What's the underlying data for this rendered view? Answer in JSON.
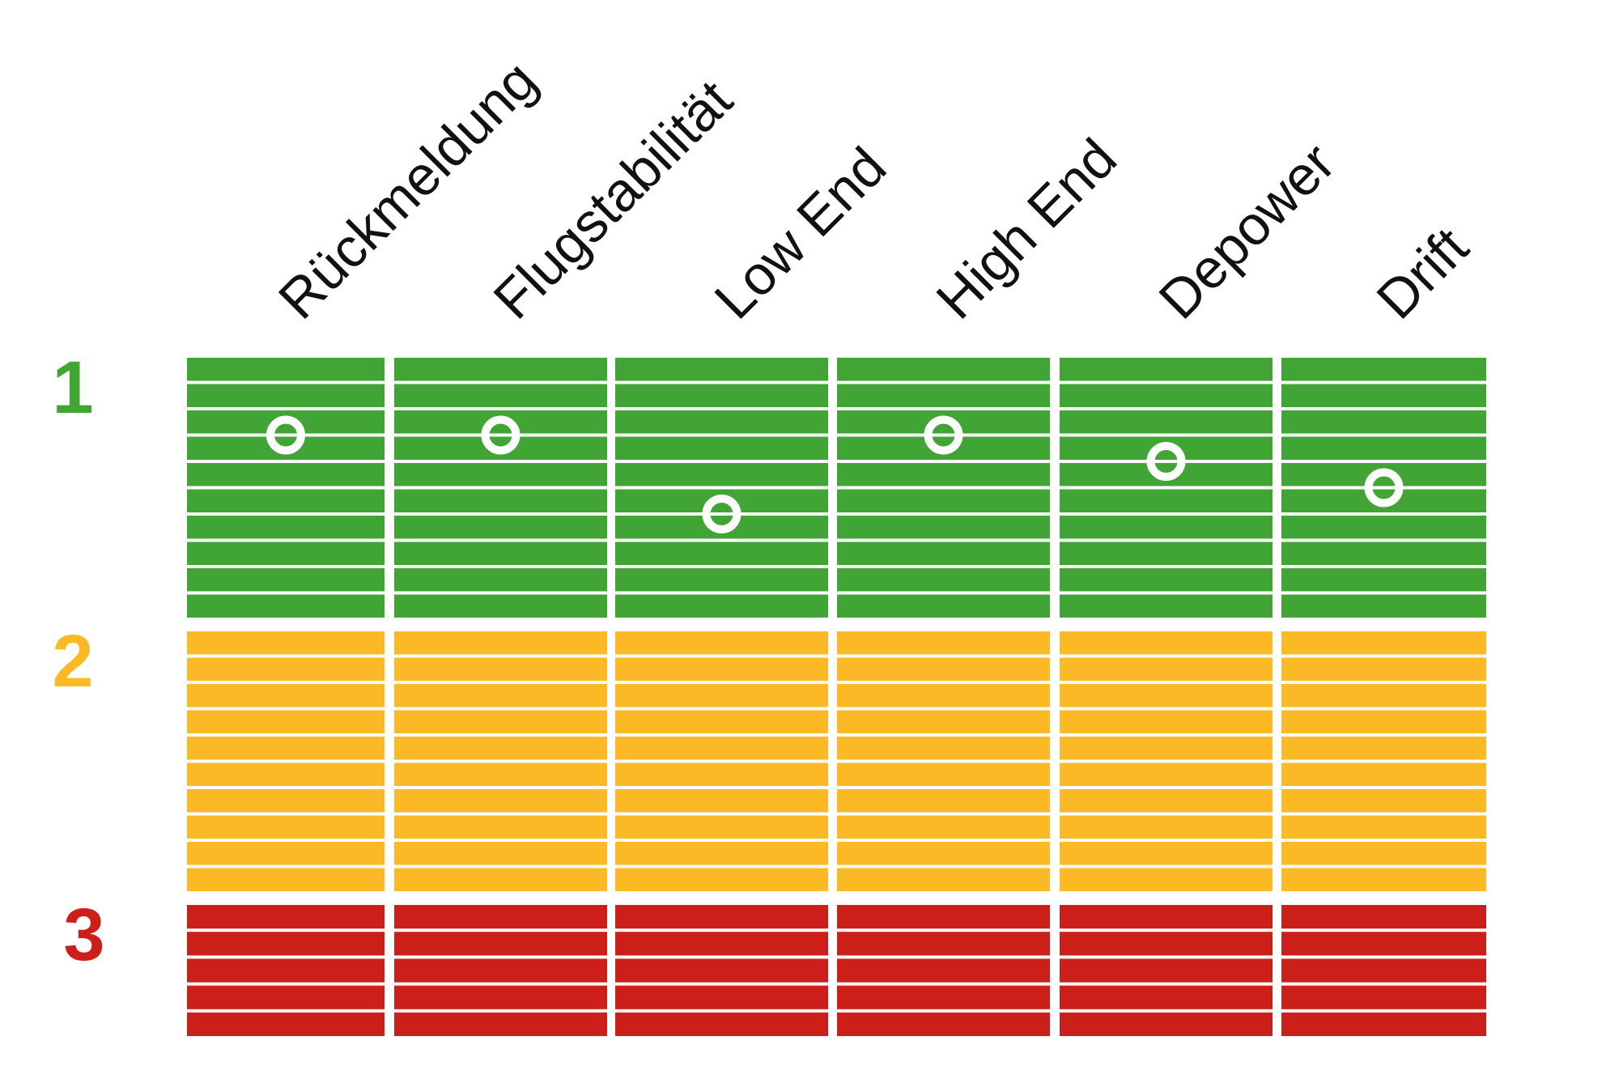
{
  "chart_data": {
    "type": "rating-grid",
    "columns": [
      "Rückmeldung",
      "Flugstabilität",
      "Low End",
      "High End",
      "Depower",
      "Drift"
    ],
    "zones": [
      {
        "label": "1",
        "color": "#40a535",
        "label_color": "#40a535",
        "rows": 10
      },
      {
        "label": "2",
        "color": "#fbb926",
        "label_color": "#fbb926",
        "rows": 10
      },
      {
        "label": "3",
        "color": "#cd1f1a",
        "label_color": "#cd1f1a",
        "rows": 5
      }
    ],
    "ratings": [
      {
        "column": "Rückmeldung",
        "row": 3
      },
      {
        "column": "Flugstabilität",
        "row": 3
      },
      {
        "column": "Low End",
        "row": 6
      },
      {
        "column": "High End",
        "row": 3
      },
      {
        "column": "Depower",
        "row": 4
      },
      {
        "column": "Drift",
        "row": 5
      }
    ],
    "marker_color": "#ffffff",
    "divider_color": "#ffffff",
    "background": "#ffffff",
    "text_color": "#111111"
  }
}
